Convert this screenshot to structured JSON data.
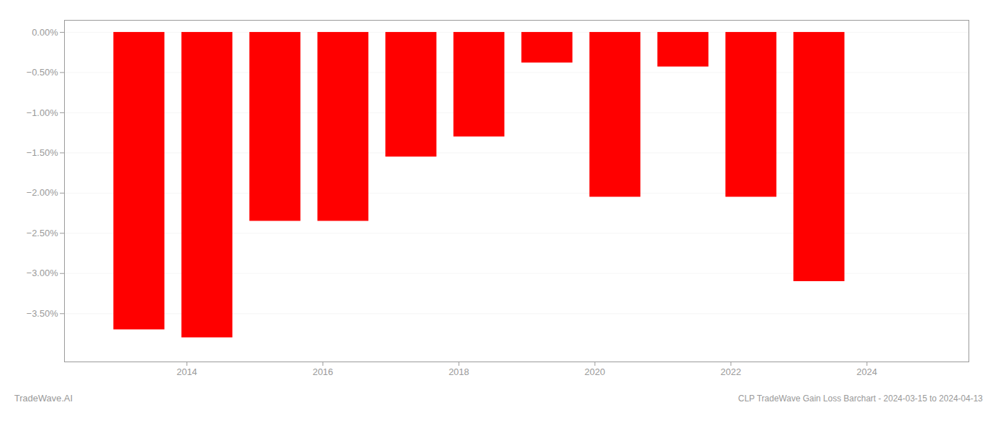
{
  "chart_data": {
    "type": "bar",
    "title": "CLP TradeWave Gain Loss Barchart - 2024-03-15 to 2024-04-13",
    "annotations": [
      "TradeWave.AI"
    ],
    "x": [
      2013.3,
      2014.3,
      2015.3,
      2016.3,
      2017.3,
      2018.3,
      2019.3,
      2020.3,
      2021.3,
      2022.3,
      2023.3
    ],
    "values": [
      -3.7,
      -3.8,
      -2.35,
      -2.35,
      -1.55,
      -1.3,
      -0.38,
      -2.05,
      -0.43,
      -2.05,
      -3.1
    ],
    "color": "#ff0000",
    "xlim": [
      2012.2,
      2025.5
    ],
    "xticks": [
      2014,
      2016,
      2018,
      2020,
      2022,
      2024
    ],
    "ylim": [
      -4.1,
      0.15
    ],
    "yticks": [
      {
        "value": 0.0,
        "label": "0.00%"
      },
      {
        "value": -0.5,
        "label": "−0.50%"
      },
      {
        "value": -1.0,
        "label": "−1.00%"
      },
      {
        "value": -1.5,
        "label": "−1.50%"
      },
      {
        "value": -2.0,
        "label": "−2.00%"
      },
      {
        "value": -2.5,
        "label": "−2.50%"
      },
      {
        "value": -3.0,
        "label": "−3.00%"
      },
      {
        "value": -3.5,
        "label": "−3.50%"
      }
    ],
    "grid": true
  }
}
